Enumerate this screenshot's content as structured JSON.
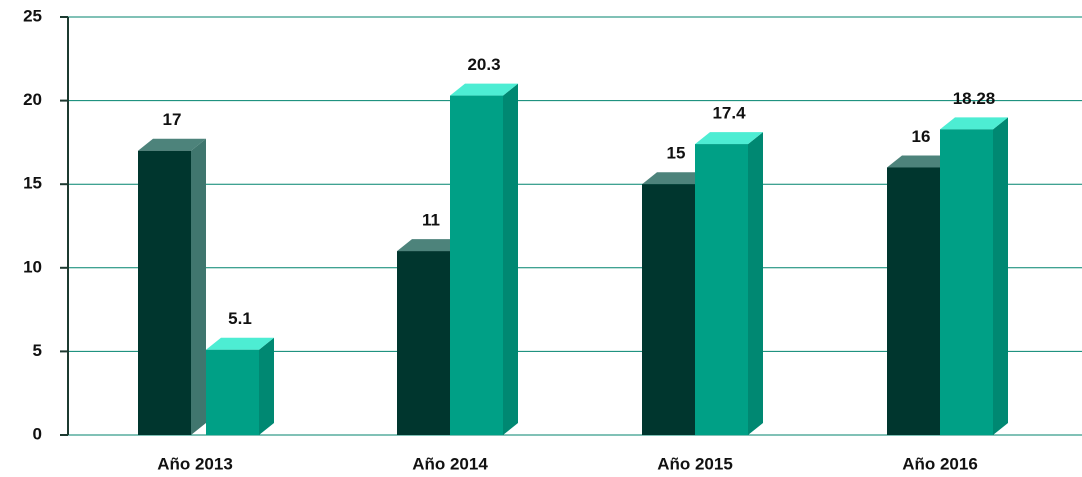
{
  "chart_data": {
    "type": "bar3d",
    "categories": [
      "Año 2013",
      "Año 2014",
      "Año 2015",
      "Año 2016"
    ],
    "series": [
      {
        "color": "#00362e",
        "values": [
          17,
          11,
          15,
          16
        ]
      },
      {
        "color": "#00a086",
        "values": [
          5.1,
          20.3,
          17.4,
          18.28
        ]
      }
    ],
    "ylim": [
      0,
      25
    ],
    "yticks": [
      0,
      5,
      10,
      15,
      20,
      25
    ],
    "grid": true
  }
}
